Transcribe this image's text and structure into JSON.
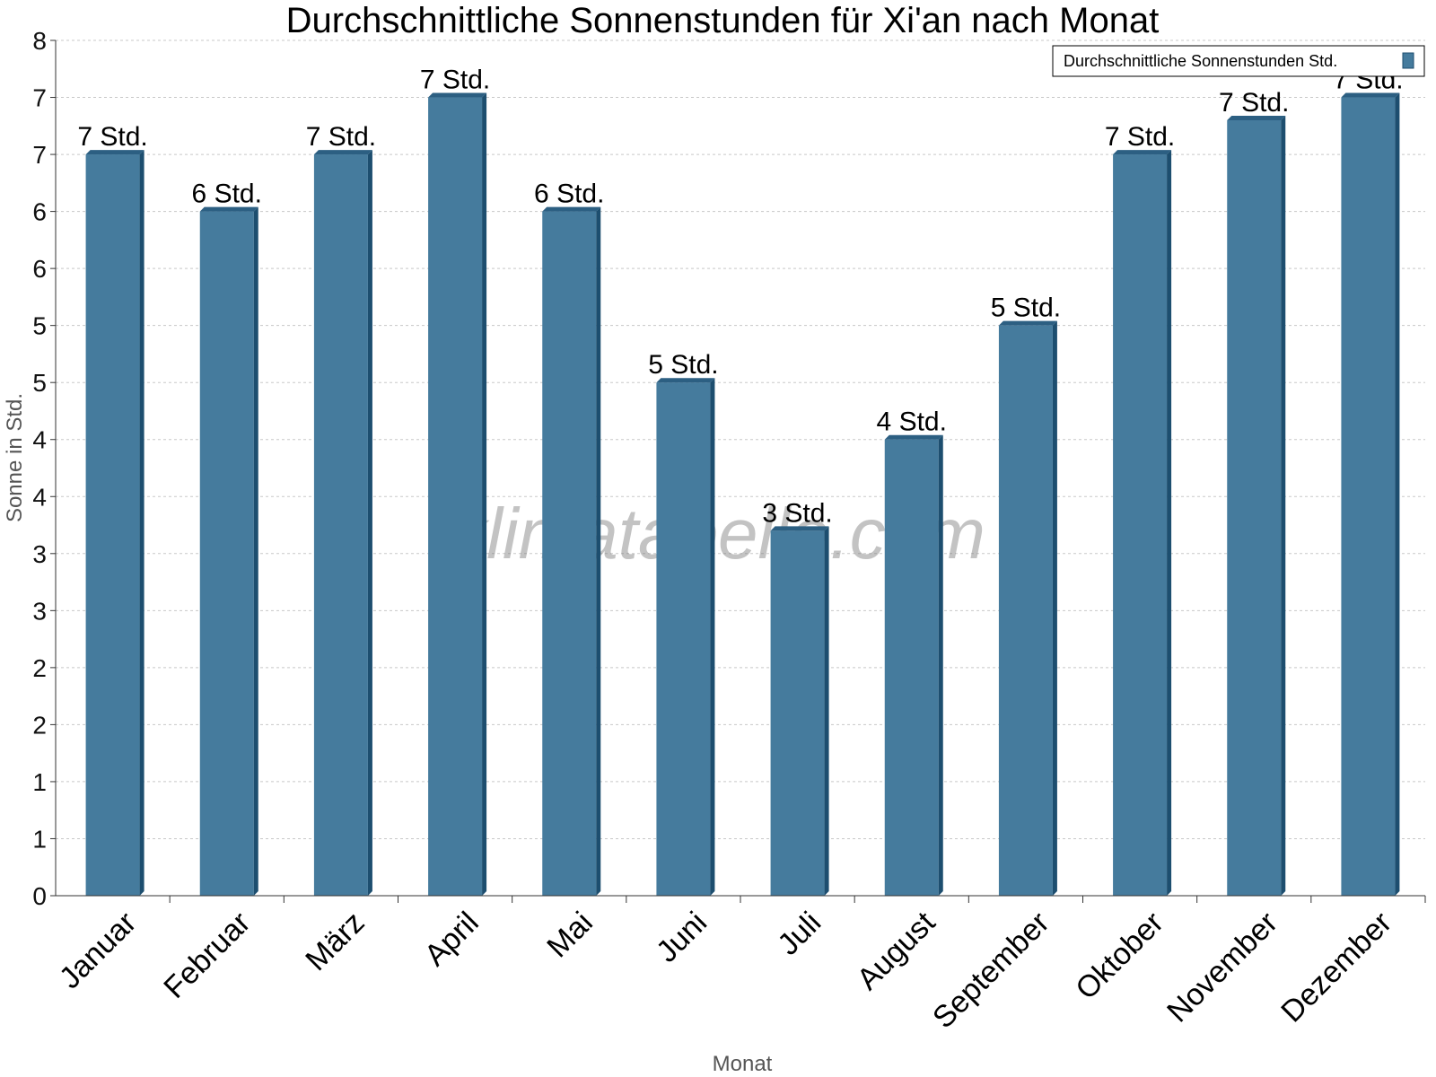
{
  "chart_data": {
    "type": "bar",
    "title": "Durchschnittliche Sonnenstunden für Xi'an nach Monat",
    "xlabel": "Monat",
    "ylabel": "Sonne in Std.",
    "ylim": [
      0,
      7.5
    ],
    "yticks": [
      0,
      0.5,
      1,
      1.5,
      2,
      2.5,
      3,
      3.5,
      4,
      4.5,
      5,
      5.5,
      6,
      6.5,
      7,
      7.5
    ],
    "ytick_labels": [
      "0",
      "1",
      "1",
      "2",
      "2",
      "3",
      "3",
      "4",
      "4",
      "5",
      "5",
      "6",
      "6",
      "7",
      "7",
      "8"
    ],
    "categories": [
      "Januar",
      "Februar",
      "März",
      "April",
      "Mai",
      "Juni",
      "Juli",
      "August",
      "September",
      "Oktober",
      "November",
      "Dezember"
    ],
    "series": [
      {
        "name": "Durchschnittliche Sonnenstunden Std.",
        "values": [
          6.5,
          6.0,
          6.5,
          7.0,
          6.0,
          4.5,
          3.2,
          4.0,
          5.0,
          6.5,
          6.8,
          7.0
        ],
        "data_labels": [
          "7 Std.",
          "6 Std.",
          "7 Std.",
          "7 Std.",
          "6 Std.",
          "5 Std.",
          "3 Std.",
          "4 Std.",
          "5 Std.",
          "7 Std.",
          "7 Std.",
          "7 Std."
        ]
      }
    ],
    "legend": "top-right",
    "grid": true,
    "watermark": "klimatabelle.com",
    "colors": {
      "bar": "#457b9d",
      "bar_side": "#1d4e6f",
      "bar_top": "#2c5f82",
      "grid": "#c8c8c8"
    }
  }
}
